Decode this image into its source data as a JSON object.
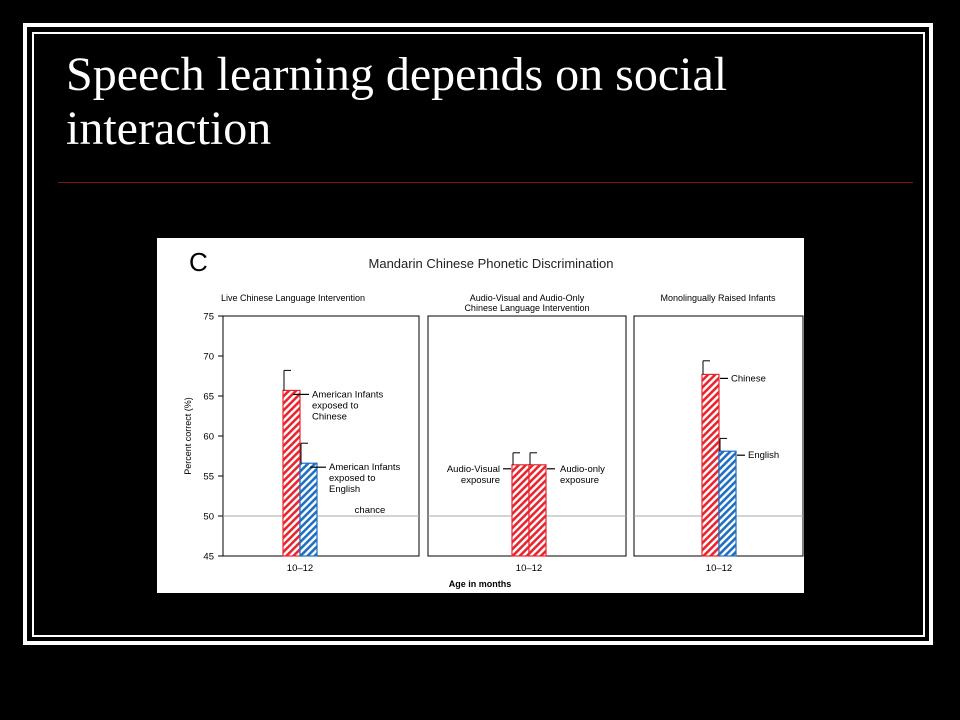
{
  "slide": {
    "title": "Speech learning depends on social interaction"
  },
  "colors": {
    "background": "#000000",
    "frame": "#ffffff",
    "title_text": "#ffffff",
    "title_rule": "#8a1010",
    "bar_red": "#e8262f",
    "bar_blue": "#1f6fc2",
    "chance_line": "#aaaaaa"
  },
  "chart_data": {
    "type": "bar",
    "panel_letter": "C",
    "title": "Mandarin Chinese Phonetic Discrimination",
    "ylabel": "Percent correct (%)",
    "xlabel": "Age in months",
    "ylim": [
      45,
      75
    ],
    "yticks": [
      45,
      50,
      55,
      60,
      65,
      70,
      75
    ],
    "grid": false,
    "reference_line": {
      "value": 50,
      "label": "chance"
    },
    "panels": [
      {
        "title": "Live Chinese Language Intervention",
        "category": "10–12",
        "series": [
          {
            "name": "American Infants exposed to Chinese",
            "label_lines": [
              "American Infants",
              "exposed to",
              "Chinese"
            ],
            "value": 65.7,
            "error": 2.5,
            "color": "red"
          },
          {
            "name": "American Infants exposed to English",
            "label_lines": [
              "American Infants",
              "exposed to",
              "English"
            ],
            "value": 56.6,
            "error": 2.5,
            "color": "blue"
          }
        ]
      },
      {
        "title": "Audio-Visual and Audio-Only Chinese Language Intervention",
        "title_lines": [
          "Audio-Visual and Audio-Only",
          "Chinese Language Intervention"
        ],
        "category": "10–12",
        "series": [
          {
            "name": "Audio-Visual exposure",
            "label_lines": [
              "Audio-Visual",
              "exposure"
            ],
            "value": 56.4,
            "error": 1.5,
            "color": "red"
          },
          {
            "name": "Audio-only exposure",
            "label_lines": [
              "Audio-only",
              "exposure"
            ],
            "value": 56.4,
            "error": 1.5,
            "color": "red"
          }
        ]
      },
      {
        "title": "Monolingually Raised Infants",
        "category": "10–12",
        "series": [
          {
            "name": "Chinese",
            "label_lines": [
              "Chinese"
            ],
            "value": 67.7,
            "error": 1.7,
            "color": "red"
          },
          {
            "name": "English",
            "label_lines": [
              "English"
            ],
            "value": 58.1,
            "error": 1.6,
            "color": "blue"
          }
        ]
      }
    ]
  }
}
